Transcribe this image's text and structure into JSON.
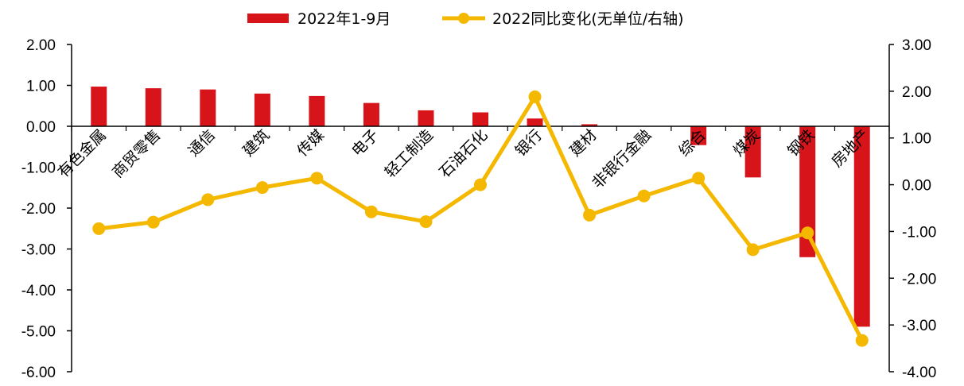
{
  "chart_data": {
    "type": "bar+line",
    "categories": [
      "有色金属",
      "商贸零售",
      "通信",
      "建筑",
      "传媒",
      "电子",
      "轻工制造",
      "石油石化",
      "银行",
      "建材",
      "非银行金融",
      "综合",
      "煤炭",
      "钢铁",
      "房地产"
    ],
    "series": [
      {
        "name": "2022年1-9月",
        "type": "bar",
        "axis": "left",
        "color": "#d7141a",
        "values": [
          0.97,
          0.93,
          0.9,
          0.8,
          0.74,
          0.57,
          0.39,
          0.34,
          0.19,
          0.05,
          0.0,
          -0.46,
          -1.25,
          -3.2,
          -4.9
        ]
      },
      {
        "name": "2022同比变化(无单位/右轴)",
        "type": "line",
        "axis": "right",
        "color": "#f5b800",
        "values": [
          -0.94,
          -0.8,
          -0.32,
          -0.06,
          0.14,
          -0.58,
          -0.79,
          0.0,
          1.88,
          -0.65,
          -0.24,
          0.14,
          -1.39,
          -1.03,
          -3.33
        ]
      }
    ],
    "y_left": {
      "min": -6,
      "max": 2,
      "step": 1,
      "tick_labels": [
        "2.00",
        "1.00",
        "0.00",
        "-1.00",
        "-2.00",
        "-3.00",
        "-4.00",
        "-5.00",
        "-6.00"
      ]
    },
    "y_right": {
      "min": -4,
      "max": 3,
      "step": 1,
      "tick_labels": [
        "3.00",
        "2.00",
        "1.00",
        "0.00",
        "-1.00",
        "-2.00",
        "-3.00",
        "-4.00"
      ]
    },
    "legend_position": "top-center",
    "grid": false
  }
}
